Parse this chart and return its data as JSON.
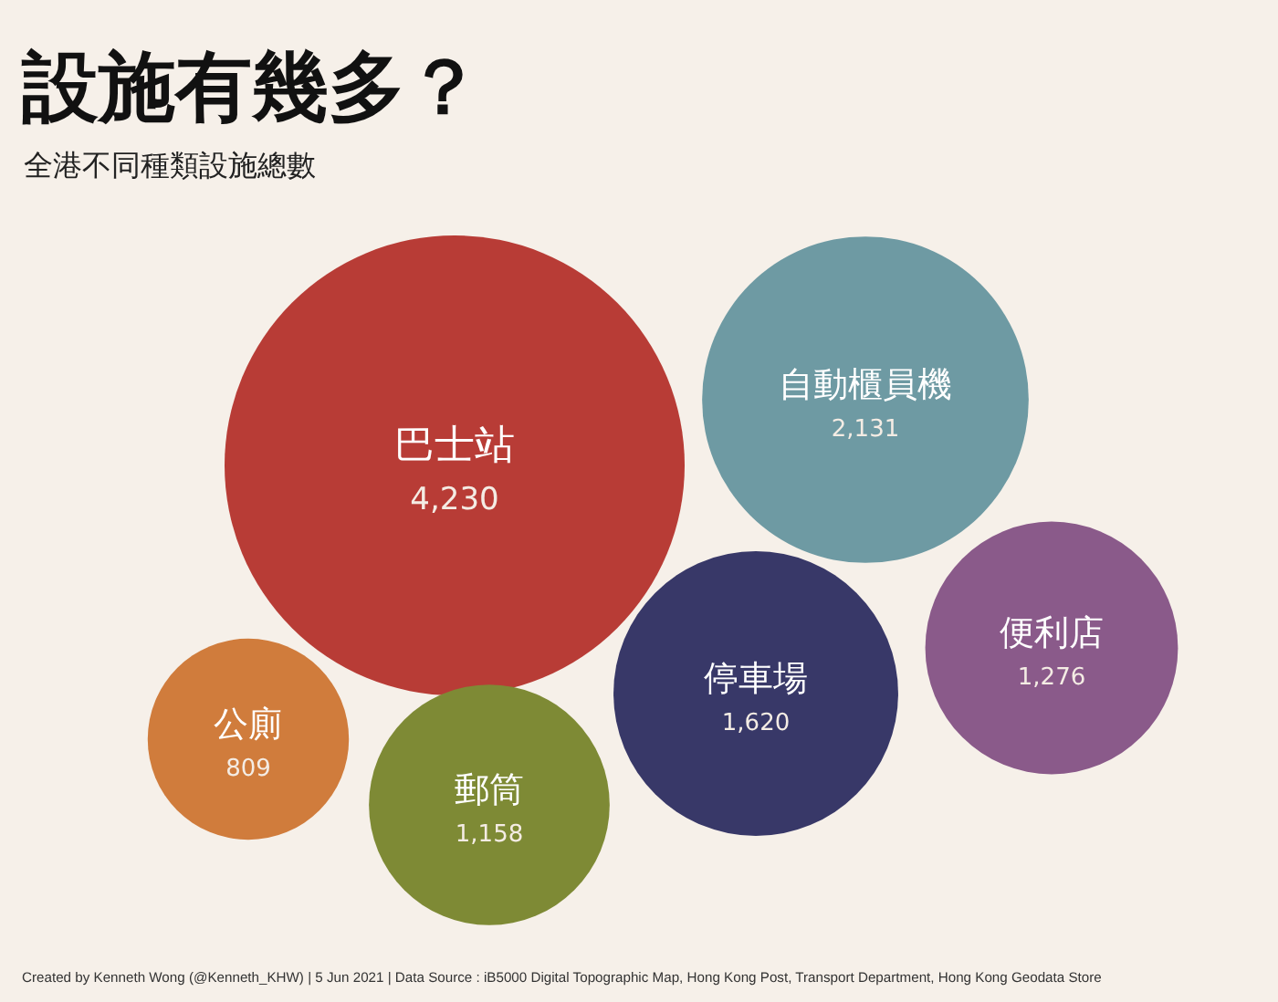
{
  "chart_data": {
    "type": "other",
    "title": "設施有幾多？",
    "subtitle": "全港不同種類設施總數",
    "categories": [
      "巴士站",
      "自動櫃員機",
      "便利店",
      "停車場",
      "郵筒",
      "公廁"
    ],
    "values": [
      4230,
      2131,
      1276,
      1620,
      1158,
      809
    ],
    "colors": [
      "#b83c36",
      "#6e9aa3",
      "#8a5a8a",
      "#383868",
      "#7e8a35",
      "#d07c3c"
    ],
    "value_labels": [
      "4,230",
      "2,131",
      "1,276",
      "1,620",
      "1,158",
      "809"
    ],
    "annotations": [
      "Created by Kenneth Wong (@Kenneth_KHW) | 5 Jun 2021 | Data Source : iB5000 Digital Topographic Map, Hong Kong Post, Transport Department, Hong Kong Geodata Store"
    ]
  }
}
